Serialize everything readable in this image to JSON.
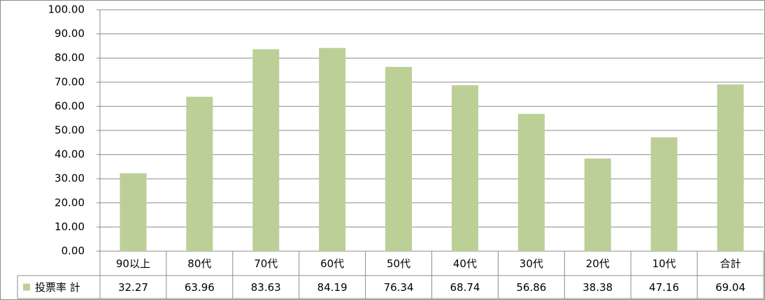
{
  "chart_data": {
    "type": "bar",
    "categories": [
      "90以上",
      "80代",
      "70代",
      "60代",
      "50代",
      "40代",
      "30代",
      "20代",
      "10代",
      "合計"
    ],
    "series": [
      {
        "name": "投票率 計",
        "color": "#bbcf97",
        "values": [
          32.27,
          63.96,
          83.63,
          84.19,
          76.34,
          68.74,
          56.86,
          38.38,
          47.16,
          69.04
        ]
      }
    ],
    "ylim": [
      0,
      100
    ],
    "yticks": [
      {
        "value": 0,
        "label": "0.00"
      },
      {
        "value": 10,
        "label": "10.00"
      },
      {
        "value": 20,
        "label": "20.00"
      },
      {
        "value": 30,
        "label": "30.00"
      },
      {
        "value": 40,
        "label": "40.00"
      },
      {
        "value": 50,
        "label": "50.00"
      },
      {
        "value": 60,
        "label": "60.00"
      },
      {
        "value": 70,
        "label": "70.00"
      },
      {
        "value": 80,
        "label": "80.00"
      },
      {
        "value": 90,
        "label": "90.00"
      },
      {
        "value": 100,
        "label": "100.00"
      }
    ],
    "grid": true
  }
}
